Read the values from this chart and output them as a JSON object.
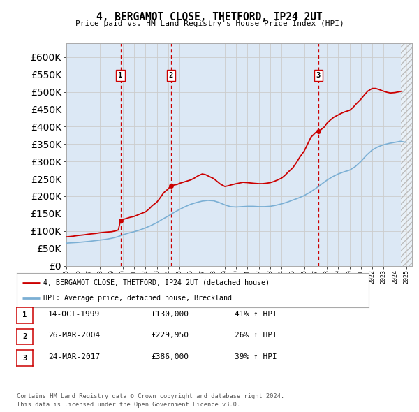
{
  "title": "4, BERGAMOT CLOSE, THETFORD, IP24 2UT",
  "subtitle": "Price paid vs. HM Land Registry's House Price Index (HPI)",
  "ytick_values": [
    0,
    50000,
    100000,
    150000,
    200000,
    250000,
    300000,
    350000,
    400000,
    450000,
    500000,
    550000,
    600000
  ],
  "ylim": [
    0,
    640000
  ],
  "xmin": 1995,
  "xmax": 2025.5,
  "sale_marker_color": "#cc0000",
  "hpi_line_color": "#7bafd4",
  "vline_color": "#cc0000",
  "grid_color": "#cccccc",
  "bg_color": "#ffffff",
  "plot_bg_color": "#dce8f5",
  "transactions": [
    {
      "id": 1,
      "date": "14-OCT-1999",
      "price": "£130,000",
      "pct": "41%",
      "year": 1999.79
    },
    {
      "id": 2,
      "date": "26-MAR-2004",
      "price": "£229,950",
      "pct": "26%",
      "year": 2004.23
    },
    {
      "id": 3,
      "date": "24-MAR-2017",
      "price": "£386,000",
      "pct": "39%",
      "year": 2017.23
    }
  ],
  "legend_line1": "4, BERGAMOT CLOSE, THETFORD, IP24 2UT (detached house)",
  "legend_line2": "HPI: Average price, detached house, Breckland",
  "footnote1": "Contains HM Land Registry data © Crown copyright and database right 2024.",
  "footnote2": "This data is licensed under the Open Government Licence v3.0.",
  "hpi_x": [
    1995.0,
    1995.5,
    1996.0,
    1996.5,
    1997.0,
    1997.5,
    1998.0,
    1998.5,
    1999.0,
    1999.5,
    2000.0,
    2000.5,
    2001.0,
    2001.5,
    2002.0,
    2002.5,
    2003.0,
    2003.5,
    2004.0,
    2004.5,
    2005.0,
    2005.5,
    2006.0,
    2006.5,
    2007.0,
    2007.5,
    2008.0,
    2008.5,
    2009.0,
    2009.5,
    2010.0,
    2010.5,
    2011.0,
    2011.5,
    2012.0,
    2012.5,
    2013.0,
    2013.5,
    2014.0,
    2014.5,
    2015.0,
    2015.5,
    2016.0,
    2016.5,
    2017.0,
    2017.5,
    2018.0,
    2018.5,
    2019.0,
    2019.5,
    2020.0,
    2020.5,
    2021.0,
    2021.5,
    2022.0,
    2022.5,
    2023.0,
    2023.5,
    2024.0,
    2024.5,
    2025.0
  ],
  "hpi_y": [
    65000,
    66000,
    67000,
    68500,
    70000,
    72000,
    74000,
    76000,
    79000,
    83000,
    89000,
    94000,
    98000,
    103000,
    109000,
    116000,
    124000,
    134000,
    143000,
    153000,
    162000,
    170000,
    177000,
    182000,
    186000,
    188000,
    187000,
    182000,
    175000,
    170000,
    169000,
    170000,
    171000,
    171000,
    170000,
    170000,
    171000,
    174000,
    178000,
    183000,
    189000,
    195000,
    202000,
    211000,
    222000,
    234000,
    246000,
    256000,
    264000,
    270000,
    275000,
    285000,
    300000,
    318000,
    333000,
    342000,
    348000,
    352000,
    355000,
    358000,
    355000
  ],
  "pp_x": [
    1995.0,
    1995.3,
    1995.6,
    1996.0,
    1996.3,
    1996.6,
    1997.0,
    1997.3,
    1997.6,
    1998.0,
    1998.3,
    1998.6,
    1999.0,
    1999.3,
    1999.6,
    1999.79,
    2000.0,
    2000.3,
    2000.6,
    2001.0,
    2001.3,
    2001.6,
    2002.0,
    2002.3,
    2002.6,
    2003.0,
    2003.3,
    2003.6,
    2004.0,
    2004.23,
    2004.5,
    2004.8,
    2005.0,
    2005.3,
    2005.6,
    2006.0,
    2006.3,
    2006.6,
    2007.0,
    2007.3,
    2007.6,
    2008.0,
    2008.3,
    2008.6,
    2009.0,
    2009.3,
    2009.6,
    2010.0,
    2010.3,
    2010.6,
    2011.0,
    2011.3,
    2011.6,
    2012.0,
    2012.3,
    2012.6,
    2013.0,
    2013.3,
    2013.6,
    2014.0,
    2014.3,
    2014.6,
    2015.0,
    2015.3,
    2015.6,
    2016.0,
    2016.3,
    2016.6,
    2017.0,
    2017.23,
    2017.5,
    2017.8,
    2018.0,
    2018.3,
    2018.6,
    2019.0,
    2019.3,
    2019.6,
    2020.0,
    2020.3,
    2020.6,
    2021.0,
    2021.3,
    2021.6,
    2022.0,
    2022.3,
    2022.6,
    2023.0,
    2023.3,
    2023.6,
    2024.0,
    2024.3,
    2024.6
  ],
  "pp_y": [
    83000,
    84000,
    85000,
    87000,
    88000,
    89000,
    91000,
    92000,
    93000,
    95000,
    96000,
    97000,
    98000,
    100000,
    103000,
    130000,
    133000,
    136000,
    139000,
    142000,
    146000,
    150000,
    155000,
    163000,
    173000,
    183000,
    196000,
    210000,
    221000,
    229950,
    232000,
    234000,
    237000,
    240000,
    243000,
    247000,
    252000,
    258000,
    264000,
    262000,
    257000,
    251000,
    243000,
    235000,
    228000,
    230000,
    233000,
    236000,
    238000,
    240000,
    239000,
    238000,
    237000,
    236000,
    236000,
    237000,
    239000,
    242000,
    246000,
    252000,
    260000,
    270000,
    282000,
    296000,
    312000,
    330000,
    350000,
    370000,
    383000,
    386000,
    392000,
    400000,
    410000,
    419000,
    427000,
    434000,
    439000,
    443000,
    447000,
    455000,
    466000,
    479000,
    491000,
    502000,
    510000,
    510000,
    507000,
    502000,
    499000,
    497000,
    498000,
    500000,
    502000
  ]
}
